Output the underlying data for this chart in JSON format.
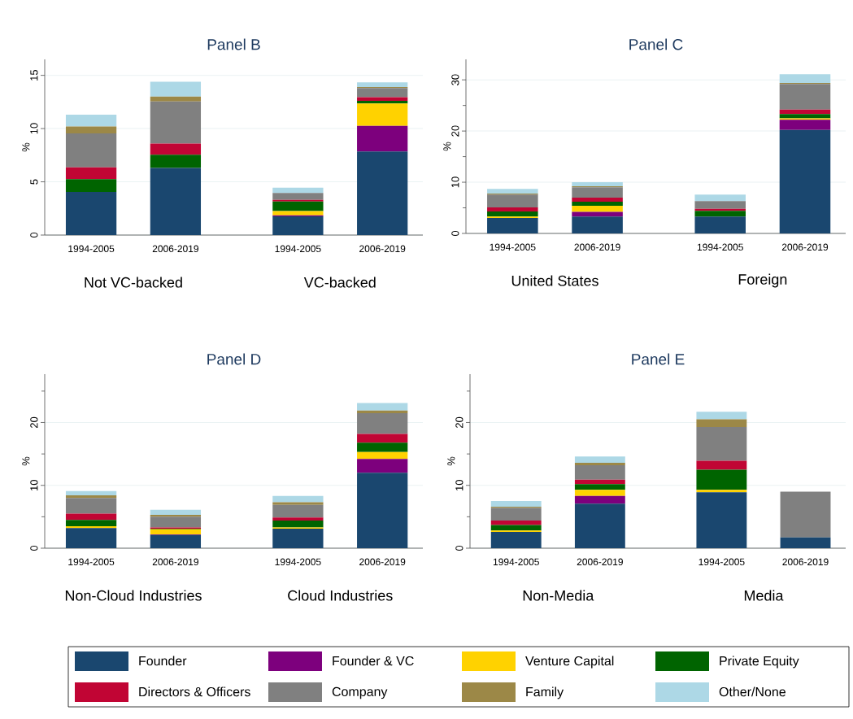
{
  "chart_data": [
    {
      "type": "bar",
      "title": "Panel B",
      "ylabel": "%",
      "stacked": true,
      "grid": "y",
      "legend": "bottom",
      "categories": [
        "1994-2005",
        "2006-2019",
        "1994-2005",
        "2006-2019"
      ],
      "annotations": [
        "Not VC-backed",
        "VC-backed"
      ],
      "ylim": [
        0,
        16.5
      ],
      "yticks": [
        0,
        5,
        10,
        15
      ],
      "series": [
        {
          "name": "Founder",
          "color": "#1a476f",
          "values": [
            4.05,
            6.3,
            1.75,
            7.85
          ]
        },
        {
          "name": "Founder & VC",
          "color": "#7d007d",
          "values": [
            0,
            0,
            0.1,
            2.4
          ]
        },
        {
          "name": "Venture Capital",
          "color": "#ffd200",
          "values": [
            0,
            0,
            0.4,
            2.1
          ]
        },
        {
          "name": "Private Equity",
          "color": "#006400",
          "values": [
            1.2,
            1.25,
            0.9,
            0.25
          ]
        },
        {
          "name": "Directors & Officers",
          "color": "#c10534",
          "values": [
            1.1,
            1.05,
            0.15,
            0.35
          ]
        },
        {
          "name": "Company",
          "color": "#808080",
          "values": [
            3.2,
            3.95,
            0.65,
            0.85
          ]
        },
        {
          "name": "Family",
          "color": "#9c8847",
          "values": [
            0.65,
            0.45,
            0,
            0.1
          ]
        },
        {
          "name": "Other/None",
          "color": "#add8e6",
          "values": [
            1.1,
            1.4,
            0.5,
            0.45
          ]
        }
      ]
    },
    {
      "type": "bar",
      "title": "Panel C",
      "ylabel": "%",
      "stacked": true,
      "grid": "y",
      "categories": [
        "1994-2005",
        "2006-2019",
        "1994-2005",
        "2006-2019"
      ],
      "annotations": [
        "United States",
        "Foreign"
      ],
      "ylim": [
        0,
        34
      ],
      "yticks": [
        0,
        {
          "value": 5,
          "label": null
        },
        10,
        {
          "value": 15,
          "label": null
        },
        20,
        {
          "value": 25,
          "label": null
        },
        30
      ],
      "series": [
        {
          "color": "#1a476f",
          "values": [
            3.0,
            3.3,
            3.3,
            20.2
          ]
        },
        {
          "color": "#7d007d",
          "values": [
            0,
            0.9,
            0,
            2.0
          ]
        },
        {
          "color": "#ffd200",
          "values": [
            0.3,
            1.2,
            0,
            0.3
          ]
        },
        {
          "color": "#006400",
          "values": [
            1.0,
            0.8,
            1.1,
            0.8
          ]
        },
        {
          "color": "#c10534",
          "values": [
            0.8,
            0.8,
            0.4,
            0.9
          ]
        },
        {
          "color": "#808080",
          "values": [
            2.5,
            2.0,
            1.5,
            5.0
          ]
        },
        {
          "color": "#9c8847",
          "values": [
            0.2,
            0.2,
            0,
            0.2
          ]
        },
        {
          "color": "#add8e6",
          "values": [
            0.9,
            0.8,
            1.3,
            1.7
          ]
        }
      ]
    },
    {
      "type": "bar",
      "title": "Panel D",
      "ylabel": "%",
      "stacked": true,
      "grid": "y",
      "categories": [
        "1994-2005",
        "2006-2019",
        "1994-2005",
        "2006-2019"
      ],
      "annotations": [
        "Non-Cloud Industries",
        "Cloud Industries"
      ],
      "ylim": [
        0,
        27.7
      ],
      "yticks": [
        0,
        {
          "value": 5,
          "label": null
        },
        10,
        {
          "value": 15,
          "label": null
        },
        20,
        {
          "value": 25,
          "label": null
        }
      ],
      "series": [
        {
          "color": "#1a476f",
          "values": [
            3.2,
            2.1,
            3.1,
            12.0
          ]
        },
        {
          "color": "#7d007d",
          "values": [
            0,
            0.1,
            0,
            2.2
          ]
        },
        {
          "color": "#ffd200",
          "values": [
            0.3,
            0.8,
            0.2,
            1.1
          ]
        },
        {
          "color": "#006400",
          "values": [
            1.0,
            0.1,
            1.1,
            1.5
          ]
        },
        {
          "color": "#c10534",
          "values": [
            1.0,
            0.2,
            0.5,
            1.4
          ]
        },
        {
          "color": "#808080",
          "values": [
            2.5,
            1.7,
            2.0,
            3.3
          ]
        },
        {
          "color": "#9c8847",
          "values": [
            0.4,
            0.3,
            0.4,
            0.4
          ]
        },
        {
          "color": "#add8e6",
          "values": [
            0.7,
            0.8,
            1.0,
            1.2
          ]
        }
      ]
    },
    {
      "type": "bar",
      "title": "Panel E",
      "ylabel": "%",
      "stacked": true,
      "grid": "y",
      "categories": [
        "1994-2005",
        "2006-2019",
        "1994-2005",
        "2006-2019"
      ],
      "annotations": [
        "Non-Media",
        "Media"
      ],
      "ylim": [
        0,
        27.7
      ],
      "yticks": [
        0,
        {
          "value": 5,
          "label": null
        },
        10,
        {
          "value": 15,
          "label": null
        },
        20,
        {
          "value": 25,
          "label": null
        }
      ],
      "series": [
        {
          "color": "#1a476f",
          "values": [
            2.6,
            7.1,
            8.9,
            1.7
          ]
        },
        {
          "color": "#7d007d",
          "values": [
            0,
            1.2,
            0,
            0
          ]
        },
        {
          "color": "#ffd200",
          "values": [
            0.2,
            1.0,
            0.4,
            0
          ]
        },
        {
          "color": "#006400",
          "values": [
            0.9,
            0.9,
            3.2,
            0
          ]
        },
        {
          "color": "#c10534",
          "values": [
            0.7,
            0.7,
            1.4,
            0
          ]
        },
        {
          "color": "#808080",
          "values": [
            2.0,
            2.3,
            5.4,
            7.3
          ]
        },
        {
          "color": "#9c8847",
          "values": [
            0.2,
            0.4,
            1.2,
            0
          ]
        },
        {
          "color": "#add8e6",
          "values": [
            0.9,
            1.0,
            1.2,
            0
          ]
        }
      ]
    }
  ]
}
